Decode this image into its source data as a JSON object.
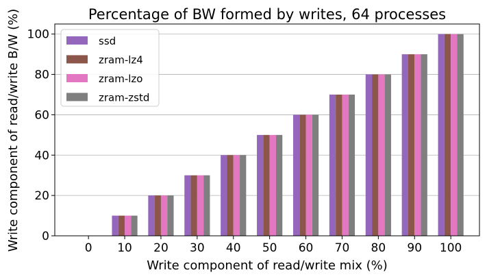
{
  "chart_data": {
    "type": "bar",
    "title": "Percentage of BW formed by writes, 64 processes",
    "xlabel": "Write component of read/write mix (%)",
    "ylabel": "Write component of read/write B/W (%)",
    "categories": [
      "0",
      "10",
      "20",
      "30",
      "40",
      "50",
      "60",
      "70",
      "80",
      "90",
      "100"
    ],
    "series": [
      {
        "name": "ssd",
        "color": "#9467bd",
        "values": [
          0,
          10,
          20,
          30,
          40,
          50,
          60,
          70,
          80,
          90,
          100
        ]
      },
      {
        "name": "zram-lz4",
        "color": "#8c564b",
        "values": [
          0,
          10,
          20,
          30,
          40,
          50,
          60,
          70,
          80,
          90,
          100
        ]
      },
      {
        "name": "zram-lzo",
        "color": "#e377c2",
        "values": [
          0,
          10,
          20,
          30,
          40,
          50,
          60,
          70,
          80,
          90,
          100
        ]
      },
      {
        "name": "zram-zstd",
        "color": "#7f7f7f",
        "values": [
          0,
          10,
          20,
          30,
          40,
          50,
          60,
          70,
          80,
          90,
          100
        ]
      }
    ],
    "ylim": [
      0,
      105
    ],
    "yticks": [
      0,
      20,
      40,
      60,
      80,
      100
    ],
    "grid": "y",
    "legend_position": "top-left"
  }
}
